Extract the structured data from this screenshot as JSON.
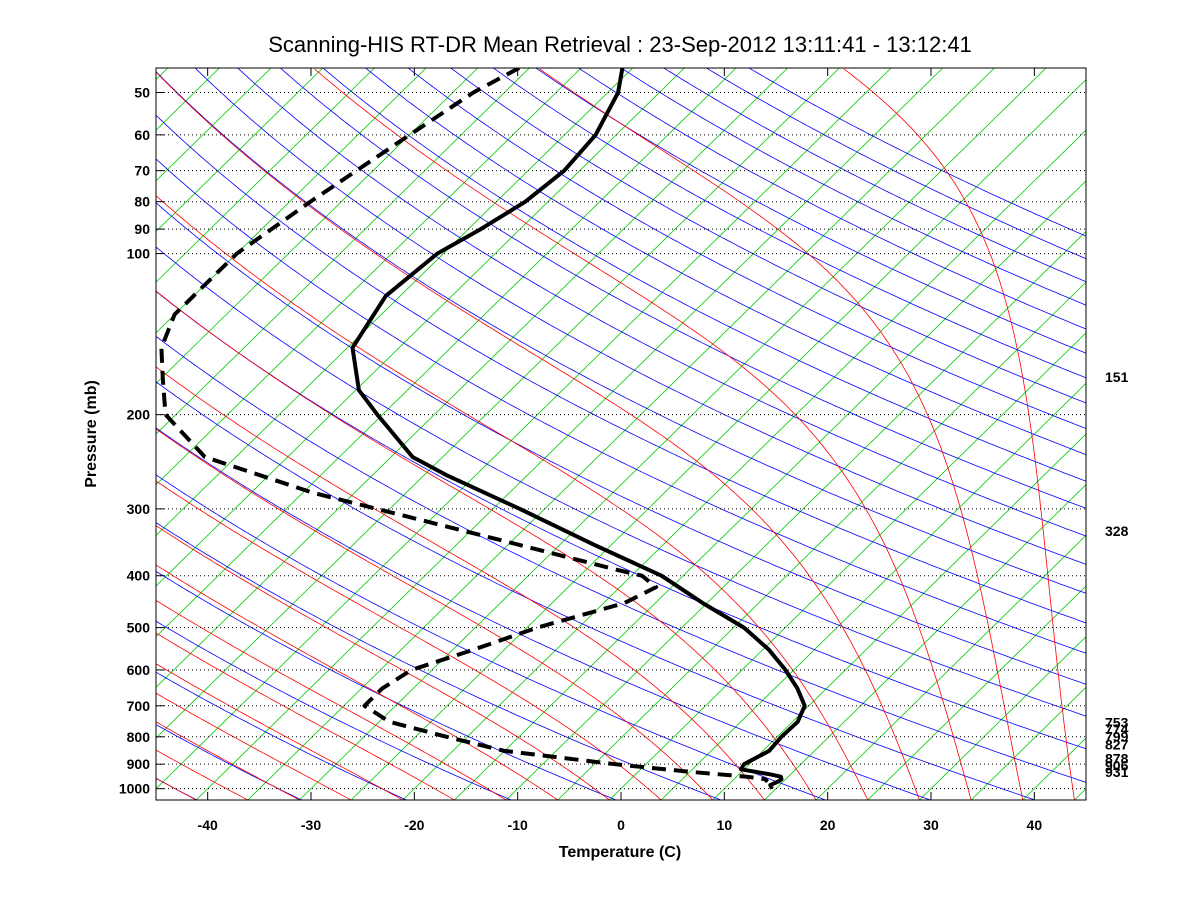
{
  "chart_data": {
    "type": "line",
    "subtype": "skew-t log-p diagram",
    "title": "Scanning-HIS RT-DR Mean Retrieval : 23-Sep-2012 13:11:41 - 13:12:41",
    "xlabel": "Temperature (C)",
    "ylabel": "Pressure (mb)",
    "xlim": [
      -45,
      45
    ],
    "plim": [
      1050,
      45
    ],
    "x_ticks": [
      -40,
      -30,
      -20,
      -10,
      0,
      10,
      20,
      30,
      40
    ],
    "p_ticks": [
      50,
      60,
      70,
      80,
      90,
      100,
      200,
      300,
      400,
      500,
      600,
      700,
      800,
      900,
      1000
    ],
    "grid": "dotted horizontal at pressure ticks",
    "background": {
      "isotherms_color": "#00c800",
      "dry_adiabats_color": "#0000ff",
      "moist_adiabats_color": "#ff0000"
    },
    "series": [
      {
        "name": "Temperature",
        "style": "solid",
        "color": "#000000",
        "points": [
          {
            "p": 45,
            "t": -71
          },
          {
            "p": 50,
            "t": -69
          },
          {
            "p": 60,
            "t": -67
          },
          {
            "p": 70,
            "t": -66.5
          },
          {
            "p": 80,
            "t": -67.2
          },
          {
            "p": 90,
            "t": -68.8
          },
          {
            "p": 100,
            "t": -70.6
          },
          {
            "p": 120,
            "t": -71.4
          },
          {
            "p": 150,
            "t": -69.5
          },
          {
            "p": 180,
            "t": -64.7
          },
          {
            "p": 200,
            "t": -60.5
          },
          {
            "p": 240,
            "t": -52.9
          },
          {
            "p": 260,
            "t": -47.7
          },
          {
            "p": 300,
            "t": -37.4
          },
          {
            "p": 350,
            "t": -26.7
          },
          {
            "p": 400,
            "t": -17.1
          },
          {
            "p": 450,
            "t": -10.4
          },
          {
            "p": 500,
            "t": -4.0
          },
          {
            "p": 550,
            "t": 0.6
          },
          {
            "p": 600,
            "t": 4.2
          },
          {
            "p": 650,
            "t": 7.2
          },
          {
            "p": 700,
            "t": 9.6
          },
          {
            "p": 750,
            "t": 10.5
          },
          {
            "p": 800,
            "t": 10.4
          },
          {
            "p": 850,
            "t": 10.6
          },
          {
            "p": 900,
            "t": 9.5
          },
          {
            "p": 920,
            "t": 9.7
          },
          {
            "p": 940,
            "t": 13.0
          },
          {
            "p": 950,
            "t": 14.3
          },
          {
            "p": 960,
            "t": 14.6
          },
          {
            "p": 970,
            "t": 14.5
          },
          {
            "p": 985,
            "t": 14.1
          },
          {
            "p": 1000,
            "t": 14.6
          }
        ]
      },
      {
        "name": "Dewpoint",
        "style": "dashed",
        "color": "#000000",
        "points": [
          {
            "p": 45,
            "t": -81
          },
          {
            "p": 50,
            "t": -83
          },
          {
            "p": 60,
            "t": -85
          },
          {
            "p": 80,
            "t": -88
          },
          {
            "p": 100,
            "t": -90
          },
          {
            "p": 130,
            "t": -90
          },
          {
            "p": 150,
            "t": -88
          },
          {
            "p": 170,
            "t": -85
          },
          {
            "p": 200,
            "t": -81
          },
          {
            "p": 240,
            "t": -73
          },
          {
            "p": 280,
            "t": -59
          },
          {
            "p": 320,
            "t": -44
          },
          {
            "p": 350,
            "t": -34
          },
          {
            "p": 390,
            "t": -22
          },
          {
            "p": 400,
            "t": -19
          },
          {
            "p": 420,
            "t": -16.5
          },
          {
            "p": 450,
            "t": -18
          },
          {
            "p": 500,
            "t": -24
          },
          {
            "p": 550,
            "t": -28
          },
          {
            "p": 600,
            "t": -32
          },
          {
            "p": 650,
            "t": -33
          },
          {
            "p": 700,
            "t": -33
          },
          {
            "p": 750,
            "t": -29
          },
          {
            "p": 800,
            "t": -22
          },
          {
            "p": 850,
            "t": -15
          },
          {
            "p": 900,
            "t": -3
          },
          {
            "p": 930,
            "t": 5
          },
          {
            "p": 950,
            "t": 11
          },
          {
            "p": 960,
            "t": 13
          },
          {
            "p": 970,
            "t": 13.5
          }
        ]
      }
    ],
    "right_labels": [
      {
        "text": "151",
        "p": 170
      },
      {
        "text": "328",
        "p": 330
      },
      {
        "text": "753",
        "p": 753
      },
      {
        "text": "774",
        "p": 774
      },
      {
        "text": "799",
        "p": 799
      },
      {
        "text": "827",
        "p": 827
      },
      {
        "text": "878",
        "p": 878
      },
      {
        "text": "906",
        "p": 906
      },
      {
        "text": "931",
        "p": 931
      }
    ]
  }
}
